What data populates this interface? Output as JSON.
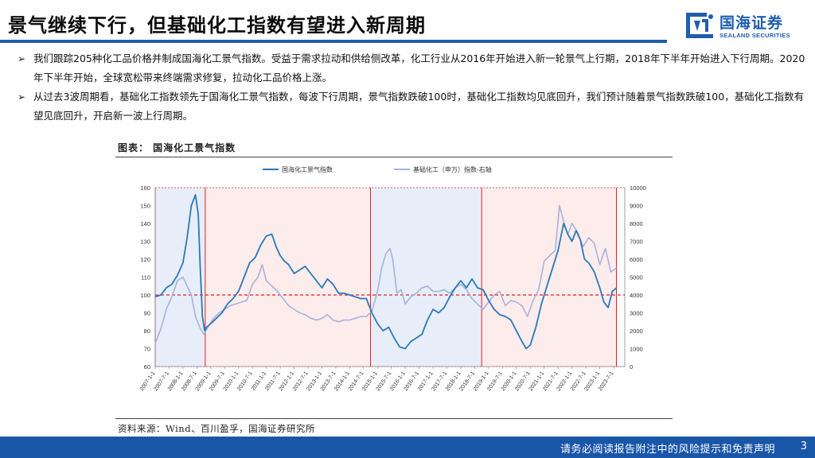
{
  "slide": {
    "title": "景气继续下行，但基础化工指数有望进入新周期",
    "logo_cn": "国海证券",
    "logo_en": "SEALAND SECURITIES",
    "brand_color": "#1f5dae"
  },
  "bullets": [
    "我们跟踪205种化工品价格并制成国海化工景气指数。受益于需求拉动和供给侧改革，化工行业从2016年开始进入新一轮景气上行期，2018年下半年开始进入下行周期。2020年下半年开始，全球宽松带来终端需求修复，拉动化工品价格上涨。",
    "从过去3波周期看，基础化工指数领先于国海化工景气指数，每波下行周期，景气指数跌破100时，基础化工指数均见底回升，我们预计随着景气指数跌破100，基础化工指数有望见底回升，开启新一波上行周期。"
  ],
  "chart": {
    "caption": "图表：   国海化工景气指数",
    "source": "资料来源：Wind、百川盈孚，国海证券研究所"
  },
  "footer": {
    "disclaimer": "请务必阅读报告附注中的风险提示和免责声明",
    "page_number": "3"
  },
  "chart_data": {
    "type": "line",
    "title": "",
    "x_tick_labels": [
      "2007-1-1",
      "2007-7-1",
      "2008-1-1",
      "2008-7-1",
      "2009-1-1",
      "2009-7-1",
      "2010-1-1",
      "2010-7-1",
      "2011-1-1",
      "2011-7-1",
      "2012-1-1",
      "2012-7-1",
      "2013-1-1",
      "2013-7-1",
      "2014-1-1",
      "2014-7-1",
      "2015-1-1",
      "2015-7-1",
      "2016-1-1",
      "2016-7-1",
      "2017-1-1",
      "2017-7-1",
      "2018-1-1",
      "2018-7-1",
      "2019-1-1",
      "2019-7-1",
      "2020-1-1",
      "2020-7-1",
      "2021-1-1",
      "2021-7-1",
      "2022-1-1",
      "2022-7-1",
      "2023-1-1",
      "2023-7-1"
    ],
    "y_left_ticks": [
      "160",
      "150",
      "140",
      "130",
      "120",
      "110",
      "100",
      "90",
      "80",
      "70",
      "60"
    ],
    "y_right_ticks": [
      "10000",
      "9000",
      "8000",
      "7000",
      "6000",
      "5000",
      "4000",
      "3000",
      "2000",
      "1000",
      "0"
    ],
    "ylim_left": [
      60,
      160
    ],
    "ylim_right": [
      0,
      10000
    ],
    "x_range": [
      2007.0,
      2023.9
    ],
    "reference_line": {
      "axis": "left",
      "value": 100,
      "color": "#e02020"
    },
    "shaded_periods": [
      {
        "start": 2007.0,
        "end": 2008.8,
        "color": "#e7eef9",
        "border": "#e02020"
      },
      {
        "start": 2008.8,
        "end": 2014.75,
        "color": "#fdecec",
        "border": "#e02020"
      },
      {
        "start": 2014.75,
        "end": 2018.75,
        "color": "#e7eef9",
        "border": "#e02020"
      },
      {
        "start": 2018.75,
        "end": 2023.6,
        "color": "#fdecec",
        "border": "#e02020"
      }
    ],
    "series": [
      {
        "name": "国海化工景气指数",
        "axis": "left",
        "color": "#2b78b8",
        "x": [
          2007.0,
          2007.2,
          2007.4,
          2007.6,
          2007.8,
          2008.0,
          2008.15,
          2008.3,
          2008.45,
          2008.55,
          2008.62,
          2008.7,
          2008.78,
          2008.85,
          2009.0,
          2009.2,
          2009.4,
          2009.6,
          2009.8,
          2010.0,
          2010.2,
          2010.4,
          2010.6,
          2010.8,
          2011.0,
          2011.2,
          2011.35,
          2011.5,
          2011.65,
          2011.8,
          2012.0,
          2012.2,
          2012.4,
          2012.6,
          2012.8,
          2013.0,
          2013.2,
          2013.4,
          2013.6,
          2013.8,
          2014.0,
          2014.2,
          2014.4,
          2014.6,
          2014.8,
          2015.0,
          2015.2,
          2015.4,
          2015.6,
          2015.8,
          2016.0,
          2016.2,
          2016.4,
          2016.6,
          2016.8,
          2017.0,
          2017.2,
          2017.4,
          2017.6,
          2017.8,
          2018.0,
          2018.2,
          2018.4,
          2018.6,
          2018.8,
          2019.0,
          2019.2,
          2019.4,
          2019.6,
          2019.8,
          2020.0,
          2020.2,
          2020.35,
          2020.5,
          2020.7,
          2020.9,
          2021.1,
          2021.3,
          2021.5,
          2021.7,
          2021.85,
          2022.0,
          2022.15,
          2022.3,
          2022.45,
          2022.6,
          2022.8,
          2023.0,
          2023.15,
          2023.3,
          2023.45,
          2023.6
        ],
        "values": [
          99,
          100,
          104,
          106,
          111,
          118,
          132,
          150,
          156,
          145,
          115,
          88,
          80,
          82,
          84,
          87,
          90,
          95,
          98,
          102,
          110,
          118,
          121,
          128,
          133,
          134,
          127,
          122,
          119,
          117,
          112,
          114,
          116,
          112,
          108,
          104,
          109,
          106,
          101,
          101,
          100,
          99,
          98,
          98,
          90,
          84,
          80,
          82,
          76,
          71,
          70,
          74,
          76,
          78,
          86,
          92,
          90,
          93,
          99,
          104,
          108,
          104,
          109,
          104,
          103,
          97,
          92,
          89,
          88,
          86,
          80,
          74,
          70,
          72,
          82,
          95,
          105,
          115,
          125,
          140,
          134,
          130,
          136,
          131,
          120,
          118,
          113,
          104,
          96,
          93,
          102,
          104
        ]
      },
      {
        "name": "基础化工（申万）指数-右轴",
        "axis": "right",
        "color": "#a5b3da",
        "x": [
          2007.0,
          2007.2,
          2007.4,
          2007.6,
          2007.8,
          2008.0,
          2008.15,
          2008.3,
          2008.45,
          2008.6,
          2008.75,
          2008.9,
          2009.1,
          2009.3,
          2009.5,
          2009.7,
          2009.9,
          2010.1,
          2010.3,
          2010.5,
          2010.7,
          2010.85,
          2011.0,
          2011.2,
          2011.4,
          2011.6,
          2011.8,
          2012.0,
          2012.2,
          2012.4,
          2012.6,
          2012.8,
          2013.0,
          2013.2,
          2013.4,
          2013.6,
          2013.8,
          2014.0,
          2014.2,
          2014.4,
          2014.6,
          2014.8,
          2015.0,
          2015.15,
          2015.3,
          2015.45,
          2015.55,
          2015.7,
          2015.85,
          2016.0,
          2016.2,
          2016.4,
          2016.6,
          2016.8,
          2017.0,
          2017.2,
          2017.4,
          2017.6,
          2017.8,
          2018.0,
          2018.2,
          2018.4,
          2018.6,
          2018.8,
          2019.0,
          2019.2,
          2019.4,
          2019.6,
          2019.8,
          2020.0,
          2020.2,
          2020.4,
          2020.6,
          2020.8,
          2021.0,
          2021.2,
          2021.4,
          2021.55,
          2021.7,
          2021.85,
          2022.0,
          2022.2,
          2022.4,
          2022.6,
          2022.8,
          2023.0,
          2023.2,
          2023.4,
          2023.6
        ],
        "values": [
          1300,
          2100,
          3200,
          3900,
          4800,
          5000,
          4500,
          4000,
          2800,
          2200,
          1800,
          2200,
          2700,
          3000,
          3200,
          3400,
          3500,
          3600,
          3700,
          4600,
          5000,
          5700,
          4800,
          4500,
          4200,
          3800,
          3400,
          3200,
          3000,
          2900,
          2700,
          2600,
          2700,
          2900,
          2600,
          2500,
          2600,
          2600,
          2700,
          2800,
          2800,
          3100,
          4200,
          5500,
          6300,
          6600,
          6000,
          4100,
          4300,
          3500,
          3900,
          4100,
          4400,
          4500,
          4200,
          4200,
          4300,
          4100,
          4400,
          4600,
          4300,
          3800,
          3500,
          3200,
          3600,
          4000,
          4200,
          3400,
          3700,
          3600,
          3400,
          2800,
          3700,
          4300,
          5900,
          6200,
          6500,
          9000,
          8100,
          7400,
          8000,
          7500,
          6700,
          7200,
          6900,
          5700,
          6600,
          5300,
          5500
        ]
      }
    ],
    "legend_position": "top-center",
    "grid": false
  }
}
